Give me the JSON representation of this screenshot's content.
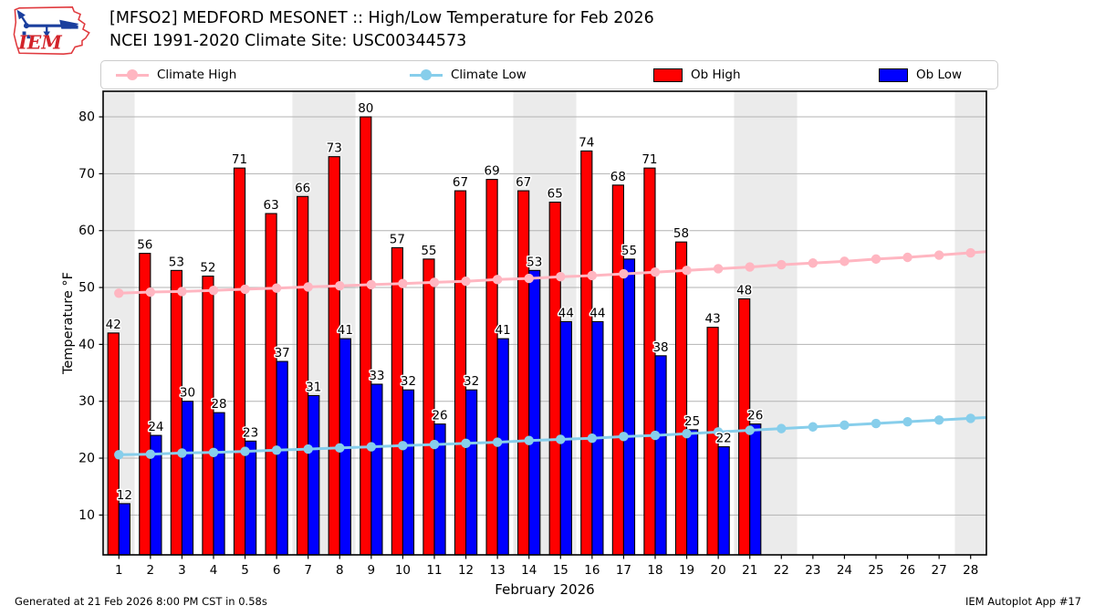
{
  "header": {
    "logo_text": "IEM",
    "title": "[MFSO2] MEDFORD MESONET :: High/Low Temperature for Feb 2026",
    "subtitle": "NCEI 1991-2020 Climate Site: USC00344573"
  },
  "legend": [
    {
      "label": "Climate High",
      "type": "line",
      "color": "#ffb6c1"
    },
    {
      "label": "Climate Low",
      "type": "line",
      "color": "#87ceeb"
    },
    {
      "label": "Ob High",
      "type": "rect",
      "color": "#ff0000"
    },
    {
      "label": "Ob Low",
      "type": "rect",
      "color": "#0000ff"
    }
  ],
  "footer": {
    "left": "Generated at 21 Feb 2026 8:00 PM CST in 0.58s",
    "right": "IEM Autoplot App #17"
  },
  "chart_data": {
    "type": "bar",
    "title": "[MFSO2] MEDFORD MESONET :: High/Low Temperature for Feb 2026",
    "subtitle": "NCEI 1991-2020 Climate Site: USC00344573",
    "xlabel": "February 2026",
    "ylabel": "Temperature °F",
    "x": [
      1,
      2,
      3,
      4,
      5,
      6,
      7,
      8,
      9,
      10,
      11,
      12,
      13,
      14,
      15,
      16,
      17,
      18,
      19,
      20,
      21,
      22,
      23,
      24,
      25,
      26,
      27,
      28
    ],
    "ylim": [
      3,
      84.5
    ],
    "yticks": [
      10,
      20,
      30,
      40,
      50,
      60,
      70,
      80
    ],
    "grid": true,
    "legend_position": "top",
    "weekend_bands": [
      [
        0,
        1
      ],
      [
        6,
        8
      ],
      [
        13,
        15
      ],
      [
        20,
        22
      ],
      [
        27,
        28
      ]
    ],
    "band_color": "#ebebeb",
    "grid_color": "#b3b3b3",
    "series": [
      {
        "name": "Ob High",
        "type": "bar",
        "color": "#ff0000",
        "values": [
          42,
          56,
          53,
          52,
          71,
          63,
          66,
          73,
          80,
          57,
          55,
          67,
          69,
          67,
          65,
          74,
          68,
          71,
          58,
          43,
          48,
          null,
          null,
          null,
          null,
          null,
          null,
          null
        ]
      },
      {
        "name": "Ob Low",
        "type": "bar",
        "color": "#0000ff",
        "values": [
          12,
          24,
          30,
          28,
          23,
          37,
          31,
          41,
          33,
          32,
          26,
          32,
          41,
          53,
          44,
          44,
          55,
          38,
          25,
          22,
          26,
          null,
          null,
          null,
          null,
          null,
          null,
          null
        ]
      },
      {
        "name": "Climate High",
        "type": "line",
        "color": "#ffb6c1",
        "values": [
          49.0,
          49.2,
          49.3,
          49.5,
          49.7,
          49.9,
          50.1,
          50.3,
          50.5,
          50.7,
          50.9,
          51.1,
          51.4,
          51.6,
          51.9,
          52.1,
          52.4,
          52.7,
          53.0,
          53.3,
          53.6,
          54.0,
          54.3,
          54.6,
          55.0,
          55.3,
          55.7,
          56.1
        ]
      },
      {
        "name": "Climate Low",
        "type": "line",
        "color": "#87ceeb",
        "values": [
          20.6,
          20.7,
          20.9,
          21.0,
          21.2,
          21.4,
          21.6,
          21.8,
          22.0,
          22.2,
          22.4,
          22.6,
          22.8,
          23.1,
          23.3,
          23.5,
          23.8,
          24.0,
          24.3,
          24.6,
          24.9,
          25.2,
          25.5,
          25.8,
          26.1,
          26.4,
          26.7,
          27.0
        ]
      }
    ]
  }
}
